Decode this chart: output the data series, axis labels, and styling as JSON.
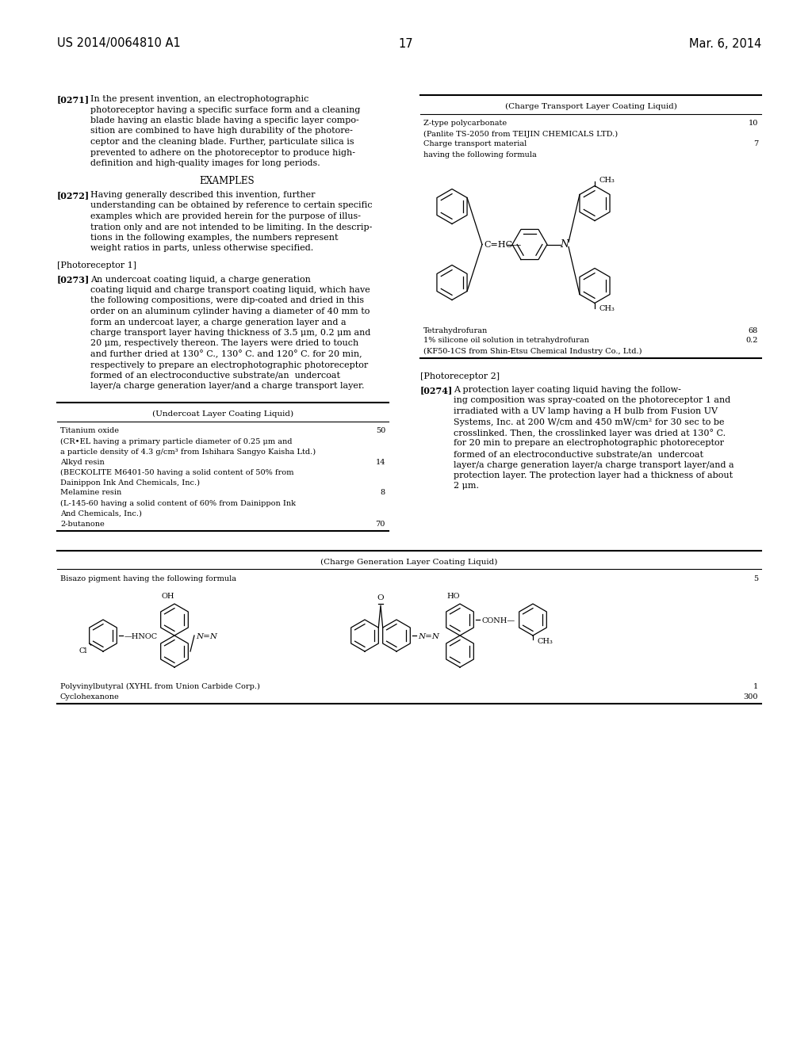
{
  "bg_color": "#ffffff",
  "header_left": "US 2014/0064810 A1",
  "header_center": "17",
  "header_right": "Mar. 6, 2014",
  "para_0271_label": "[0271]",
  "para_0271_lines": [
    "In the present invention, an electrophotographic",
    "photoreceptor having a specific surface form and a cleaning",
    "blade having an elastic blade having a specific layer compo-",
    "sition are combined to have high durability of the photore-",
    "ceptor and the cleaning blade. Further, particulate silica is",
    "prevented to adhere on the photoreceptor to produce high-",
    "definition and high-quality images for long periods."
  ],
  "examples_heading": "EXAMPLES",
  "para_0272_label": "[0272]",
  "para_0272_lines": [
    "Having generally described this invention, further",
    "understanding can be obtained by reference to certain specific",
    "examples which are provided herein for the purpose of illus-",
    "tration only and are not intended to be limiting. In the descrip-",
    "tions in the following examples, the numbers represent",
    "weight ratios in parts, unless otherwise specified."
  ],
  "photoreceptor1_heading": "[Photoreceptor 1]",
  "para_0273_label": "[0273]",
  "para_0273_lines": [
    "An undercoat coating liquid, a charge generation",
    "coating liquid and charge transport coating liquid, which have",
    "the following compositions, were dip-coated and dried in this",
    "order on an aluminum cylinder having a diameter of 40 mm to",
    "form an undercoat layer, a charge generation layer and a",
    "charge transport layer having thickness of 3.5 μm, 0.2 μm and",
    "20 μm, respectively thereon. The layers were dried to touch",
    "and further dried at 130° C., 130° C. and 120° C. for 20 min,",
    "respectively to prepare an electrophotographic photoreceptor",
    "formed of an electroconductive substrate/an  undercoat",
    "layer/a charge generation layer/and a charge transport layer."
  ],
  "table1_title": "(Undercoat Layer Coating Liquid)",
  "table1_rows": [
    [
      "Titanium oxide",
      "50"
    ],
    [
      "(CR•EL having a primary particle diameter of 0.25 μm and",
      ""
    ],
    [
      "a particle density of 4.3 g/cm³ from Ishihara Sangyo Kaisha Ltd.)",
      ""
    ],
    [
      "Alkyd resin",
      "14"
    ],
    [
      "(BECKOLITE M6401-50 having a solid content of 50% from",
      ""
    ],
    [
      "Dainippon Ink And Chemicals, Inc.)",
      ""
    ],
    [
      "Melamine resin",
      "8"
    ],
    [
      "(L-145-60 having a solid content of 60% from Dainippon Ink",
      ""
    ],
    [
      "And Chemicals, Inc.)",
      ""
    ],
    [
      "2-butanone",
      "70"
    ]
  ],
  "table2_title": "(Charge Transport Layer Coating Liquid)",
  "table2_rows_top": [
    [
      "Z-type polycarbonate",
      "10"
    ],
    [
      "(Panlite TS-2050 from TEIJIN CHEMICALS LTD.)",
      ""
    ],
    [
      "Charge transport material",
      "7"
    ],
    [
      "having the following formula",
      ""
    ]
  ],
  "table2_rows_bottom": [
    [
      "Tetrahydrofuran",
      "68"
    ],
    [
      "1% silicone oil solution in tetrahydrofuran",
      "0.2"
    ],
    [
      "(KF50-1CS from Shin-Etsu Chemical Industry Co., Ltd.)",
      ""
    ]
  ],
  "table3_title": "(Charge Generation Layer Coating Liquid)",
  "table3_row_top": [
    "Bisazo pigment having the following formula",
    "5"
  ],
  "table3_rows_bottom": [
    [
      "Polyvinylbutyral (XYHL from Union Carbide Corp.)",
      "1"
    ],
    [
      "Cyclohexanone",
      "300"
    ]
  ],
  "photoreceptor2_heading": "[Photoreceptor 2]",
  "para_0274_label": "[0274]",
  "para_0274_lines": [
    "A protection layer coating liquid having the follow-",
    "ing composition was spray-coated on the photoreceptor 1 and",
    "irradiated with a UV lamp having a H bulb from Fusion UV",
    "Systems, Inc. at 200 W/cm and 450 mW/cm² for 30 sec to be",
    "crosslinked. Then, the crosslinked layer was dried at 130° C.",
    "for 20 min to prepare an electrophotographic photoreceptor",
    "formed of an electroconductive substrate/an  undercoat",
    "layer/a charge generation layer/a charge transport layer/and a",
    "protection layer. The protection layer had a thickness of about",
    "2 μm."
  ]
}
